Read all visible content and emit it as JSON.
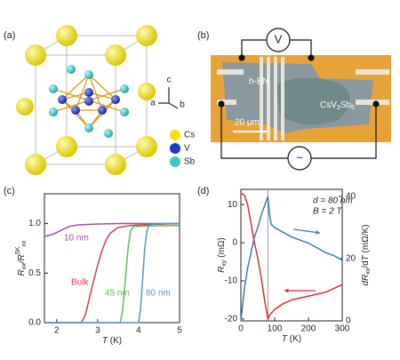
{
  "panels": {
    "a": {
      "label": "(a)",
      "axes": [
        "c",
        "a",
        "b"
      ],
      "legend": [
        {
          "name": "Cs",
          "color": "#f2e205"
        },
        {
          "name": "V",
          "color": "#2436c8"
        },
        {
          "name": "Sb",
          "color": "#3cc6c8"
        }
      ]
    },
    "b": {
      "label": "(b)",
      "meter": "V",
      "source": "~",
      "material_1": "h-BN",
      "material_2": [
        {
          "text": "CsV"
        },
        {
          "text": "3",
          "style": "sub"
        },
        {
          "text": "Sb"
        },
        {
          "text": "5",
          "style": "sub"
        }
      ],
      "scale_bar": "20 μm"
    }
  },
  "chart_data": [
    {
      "type": "line",
      "panel_label": "(c)",
      "x_label": [
        {
          "text": "T",
          "style": "italic"
        },
        {
          "text": " (K)"
        }
      ],
      "y_label": [
        {
          "text": "R",
          "style": "italic"
        },
        {
          "text": "xx",
          "style": "sub"
        },
        {
          "text": "/R",
          "style": "italic"
        },
        {
          "text": "5K",
          "style": "sup"
        },
        {
          "text": "xx",
          "style": "sub"
        }
      ],
      "xlim": [
        1.7,
        5
      ],
      "xticks": [
        2,
        3,
        4,
        5
      ],
      "ylim": [
        0,
        1.3
      ],
      "yticks": [
        {
          "value": 0,
          "label": "0.0"
        },
        {
          "value": 0.5,
          "label": "0.5"
        },
        {
          "value": 1,
          "label": "1.0"
        }
      ],
      "series": [
        {
          "name": "10 nm",
          "color": "#9b4fb5",
          "x": [
            1.7,
            1.9,
            2.1,
            2.3,
            2.5,
            2.7,
            3.0,
            3.5,
            4,
            5
          ],
          "values": [
            0.87,
            0.89,
            0.93,
            0.97,
            0.985,
            0.99,
            0.995,
            1.0,
            1.0,
            1.0
          ]
        },
        {
          "name": "Bulk",
          "color": "#d43a4a",
          "x": [
            1.7,
            2.6,
            2.7,
            2.8,
            2.9,
            3.0,
            3.1,
            3.2,
            3.3,
            3.5,
            3.8,
            4.2,
            5
          ],
          "values": [
            0,
            0,
            0.08,
            0.25,
            0.42,
            0.58,
            0.72,
            0.83,
            0.9,
            0.96,
            0.98,
            0.99,
            1.0
          ]
        },
        {
          "name": "45 nm",
          "color": "#5bbf5b",
          "x": [
            1.7,
            3.55,
            3.6,
            3.65,
            3.7,
            3.75,
            3.8,
            3.85,
            3.9,
            4.2,
            5
          ],
          "values": [
            0,
            0,
            0.1,
            0.3,
            0.55,
            0.78,
            0.92,
            0.96,
            0.97,
            0.975,
            0.98
          ]
        },
        {
          "name": "80 nm",
          "color": "#5b95c7",
          "x": [
            1.7,
            4.0,
            4.05,
            4.1,
            4.15,
            4.2,
            4.25,
            4.3,
            4.5,
            5
          ],
          "values": [
            0,
            0,
            0.15,
            0.45,
            0.75,
            0.92,
            0.98,
            0.99,
            1.0,
            1.0
          ]
        }
      ]
    },
    {
      "type": "line",
      "panel_label": "(d)",
      "x_label": [
        {
          "text": "T",
          "style": "italic"
        },
        {
          "text": " (K)"
        }
      ],
      "y_label": [
        {
          "text": "R",
          "style": "italic"
        },
        {
          "text": "xy",
          "style": "sub"
        },
        {
          "text": " (mΩ)"
        }
      ],
      "y2_label": [
        {
          "text": "dR",
          "style": "italic"
        },
        {
          "text": "xx",
          "style": "sub"
        },
        {
          "text": "/d"
        },
        {
          "text": "T",
          "style": "italic"
        },
        {
          "text": " (mΩ/K)"
        }
      ],
      "annotations": [
        "d = 80 nm",
        "B = 2 T"
      ],
      "vline": 80,
      "xlim": [
        0,
        300
      ],
      "xticks": [
        0,
        100,
        200,
        300
      ],
      "ylim": [
        -20.5,
        14
      ],
      "yticks": [
        -20,
        -10,
        0,
        10
      ],
      "y2lim": [
        0,
        42.3
      ],
      "y2ticks": [
        0,
        20,
        40
      ],
      "x": [
        0,
        10,
        20,
        30,
        40,
        50,
        60,
        70,
        80,
        85,
        90,
        100,
        125,
        150,
        175,
        200,
        225,
        250,
        275,
        300
      ],
      "series": [
        {
          "color": "#d43030",
          "values": [
            13,
            12.5,
            10,
            5,
            0,
            -4,
            -9,
            -15,
            -20,
            -19,
            -18.5,
            -17.5,
            -16,
            -15,
            -14.5,
            -14,
            -13.5,
            -13,
            -12,
            -11
          ]
        },
        {
          "color": "#3a7ab8",
          "axis": "y2",
          "values": [
            0,
            10,
            17,
            22,
            27,
            30,
            34,
            37,
            40,
            34,
            31,
            30,
            28.5,
            27,
            26,
            25,
            23.5,
            22,
            21,
            19.5
          ]
        }
      ]
    }
  ]
}
